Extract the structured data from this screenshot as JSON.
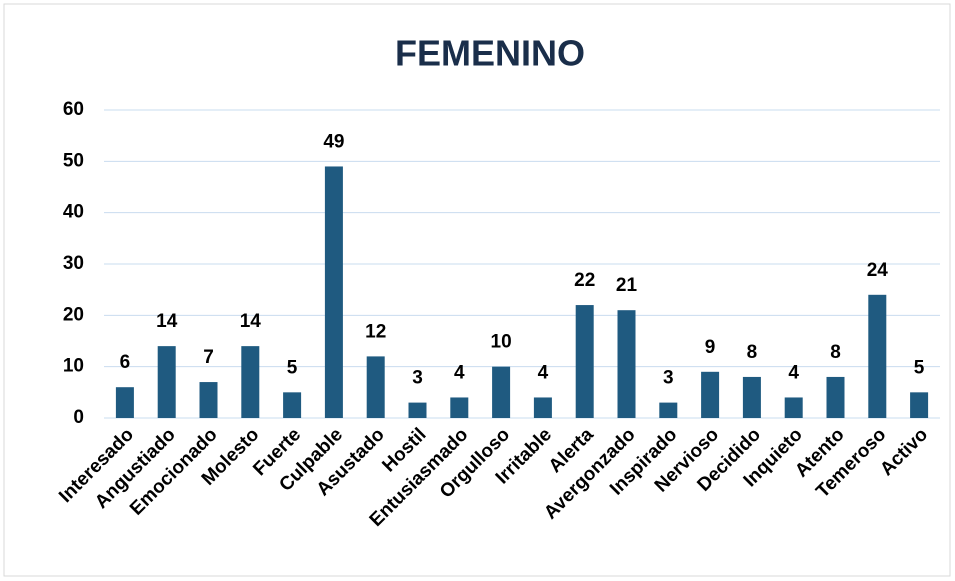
{
  "chart_data": {
    "type": "bar",
    "title": "FEMENINO",
    "categories": [
      "Interesado",
      "Angustiado",
      "Emocionado",
      "Molesto",
      "Fuerte",
      "Culpable",
      "Asustado",
      "Hostil",
      "Entusiasmado",
      "Orgulloso",
      "Irritable",
      "Alerta",
      "Avergonzado",
      "Inspirado",
      "Nervioso",
      "Decidido",
      "Inquieto",
      "Atento",
      "Temeroso",
      "Activo"
    ],
    "values": [
      6,
      14,
      7,
      14,
      5,
      49,
      12,
      3,
      4,
      10,
      4,
      22,
      21,
      3,
      9,
      8,
      4,
      8,
      24,
      5
    ],
    "color": "#1f5a80",
    "ylim": [
      0,
      60
    ],
    "yticks": [
      0,
      10,
      20,
      30,
      40,
      50,
      60
    ],
    "grid": true
  }
}
